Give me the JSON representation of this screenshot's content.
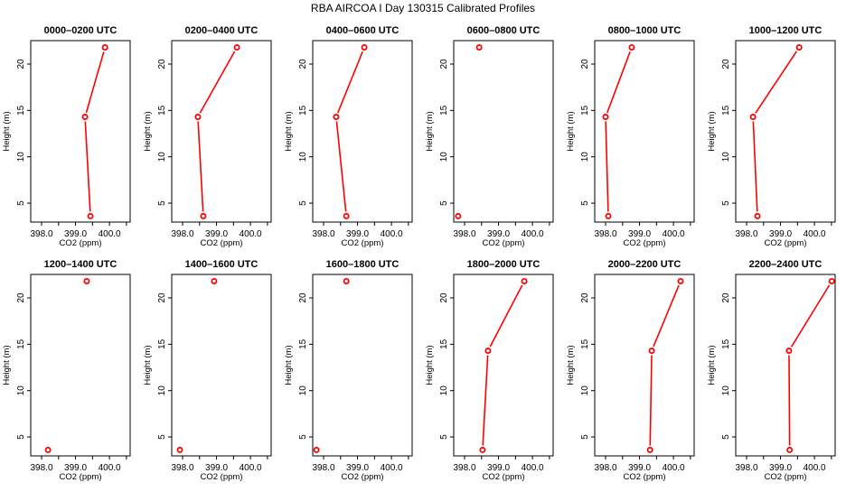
{
  "chart_data": {
    "type": "line",
    "title": "RBA AIRCOA I  Day 130315  Calibrated Profiles",
    "xlabel": "CO2 (ppm)",
    "ylabel": "Height (m)",
    "xlim": [
      397.68,
      400.61
    ],
    "ylim": [
      2.96,
      22.53
    ],
    "xticks": [
      398.0,
      398.5,
      399.0,
      399.5,
      400.0,
      400.5
    ],
    "xtick_labels": [
      "398.0",
      "399.0",
      "400.0"
    ],
    "xtick_label_values": [
      398.0,
      399.0,
      400.0
    ],
    "yticks": [
      5,
      10,
      15,
      20
    ],
    "ytick_labels": [
      "5",
      "10",
      "15",
      "20"
    ],
    "color": "#ff0000",
    "heights": [
      3.6,
      14.3,
      21.8
    ],
    "panels": [
      {
        "title": "0000–0200 UTC",
        "co2": [
          399.44,
          399.28,
          399.87
        ]
      },
      {
        "title": "0200–0400 UTC",
        "co2": [
          398.61,
          398.45,
          399.6
        ]
      },
      {
        "title": "0400–0600 UTC",
        "co2": [
          398.67,
          398.37,
          399.2
        ]
      },
      {
        "title": "0600–0800 UTC",
        "co2": [
          397.81,
          null,
          398.43
        ]
      },
      {
        "title": "0800–1000 UTC",
        "co2": [
          398.08,
          398.0,
          398.77
        ]
      },
      {
        "title": "1000–1200 UTC",
        "co2": [
          398.32,
          398.19,
          399.55
        ]
      },
      {
        "title": "1200–1400 UTC",
        "co2": [
          398.19,
          null,
          399.33
        ]
      },
      {
        "title": "1400–1600 UTC",
        "co2": [
          397.92,
          null,
          398.93
        ]
      },
      {
        "title": "1600–1800 UTC",
        "co2": [
          397.79,
          null,
          398.67
        ]
      },
      {
        "title": "1800–2000 UTC",
        "co2": [
          398.53,
          398.69,
          399.76
        ]
      },
      {
        "title": "2000–2200 UTC",
        "co2": [
          399.31,
          399.36,
          400.21
        ]
      },
      {
        "title": "2200–2400 UTC",
        "co2": [
          399.27,
          399.25,
          400.51
        ]
      }
    ]
  }
}
